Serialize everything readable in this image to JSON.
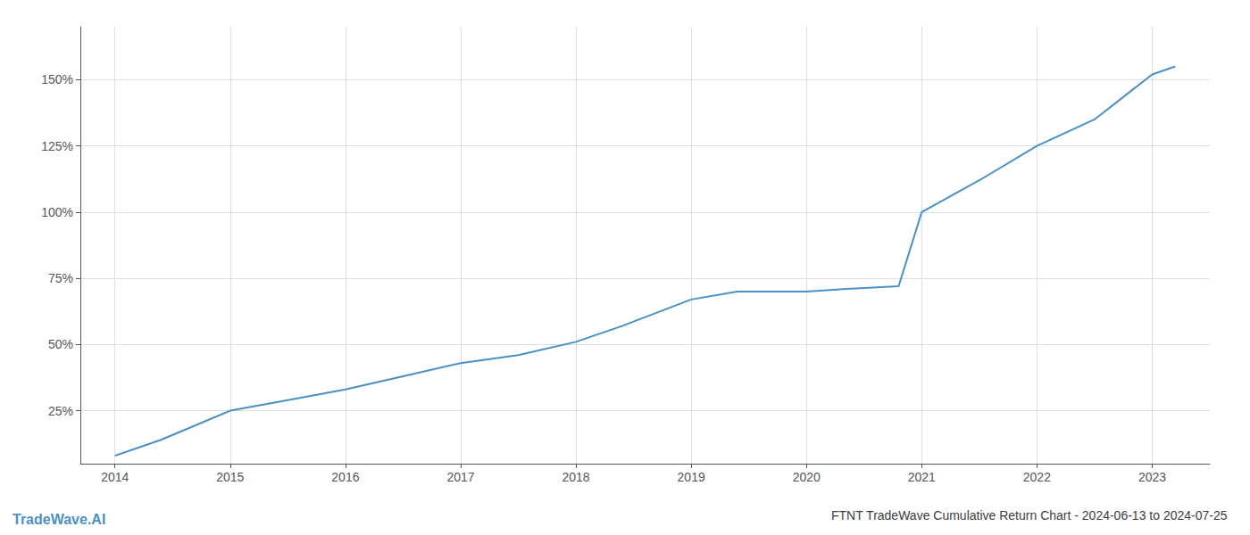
{
  "chart_data": {
    "type": "line",
    "title": "FTNT TradeWave Cumulative Return Chart - 2024-06-13 to 2024-07-25",
    "annotations": [
      "TradeWave.AI"
    ],
    "x": [
      2014.0,
      2014.4,
      2015.0,
      2015.5,
      2016.0,
      2016.5,
      2017.0,
      2017.5,
      2018.0,
      2018.4,
      2019.0,
      2019.4,
      2019.7,
      2020.0,
      2020.35,
      2020.8,
      2021.0,
      2021.5,
      2022.0,
      2022.5,
      2023.0,
      2023.2
    ],
    "values": [
      8,
      14,
      25,
      29,
      33,
      38,
      43,
      46,
      51,
      57,
      67,
      70,
      70,
      70,
      71,
      72,
      100,
      112,
      125,
      135,
      152,
      155
    ],
    "color": "#4a90c4",
    "xlim": [
      2013.7,
      2023.5
    ],
    "ylim": [
      5,
      170
    ],
    "xticks": [
      2014,
      2015,
      2016,
      2017,
      2018,
      2019,
      2020,
      2021,
      2022,
      2023
    ],
    "yticks": [
      {
        "value": 25,
        "label": "25%"
      },
      {
        "value": 50,
        "label": "50%"
      },
      {
        "value": 75,
        "label": "75%"
      },
      {
        "value": 100,
        "label": "100%"
      },
      {
        "value": 125,
        "label": "125%"
      },
      {
        "value": 150,
        "label": "150%"
      }
    ],
    "grid": true
  }
}
